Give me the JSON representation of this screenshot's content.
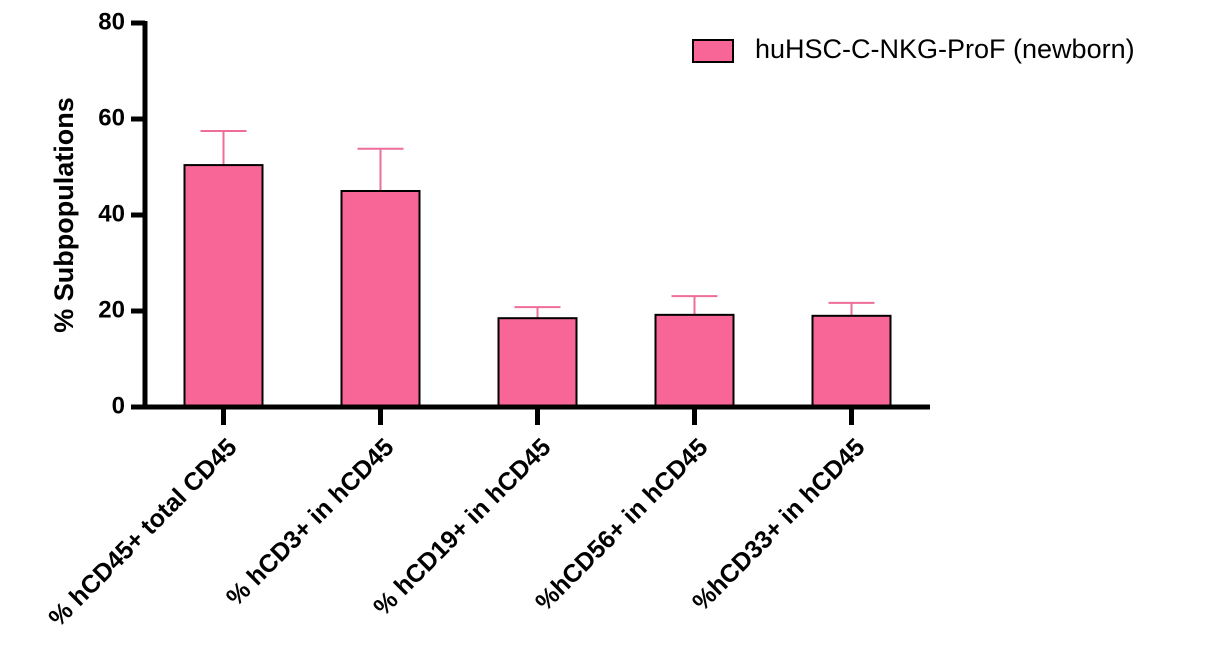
{
  "chart_data": {
    "type": "bar",
    "y_label": "% Subpopulations",
    "categories": [
      "% hCD45+ total CD45",
      "% hCD3+ in hCD45",
      "% hCD19+ in hCD45",
      "%hCD56+ in hCD45",
      "%hCD33+ in hCD45"
    ],
    "series": [
      {
        "name": "huHSC-C-NKG-ProF (newborn)",
        "color": "#f76696",
        "error_color": "#ee6d9b",
        "values": [
          50.4,
          45,
          18.5,
          19.2,
          19
        ],
        "errors": [
          7.1,
          8.8,
          2.3,
          3.9,
          2.7
        ]
      }
    ],
    "ylim": [
      0,
      80
    ],
    "yticks": [
      0,
      20,
      40,
      60,
      80
    ],
    "legend": "top-right"
  }
}
